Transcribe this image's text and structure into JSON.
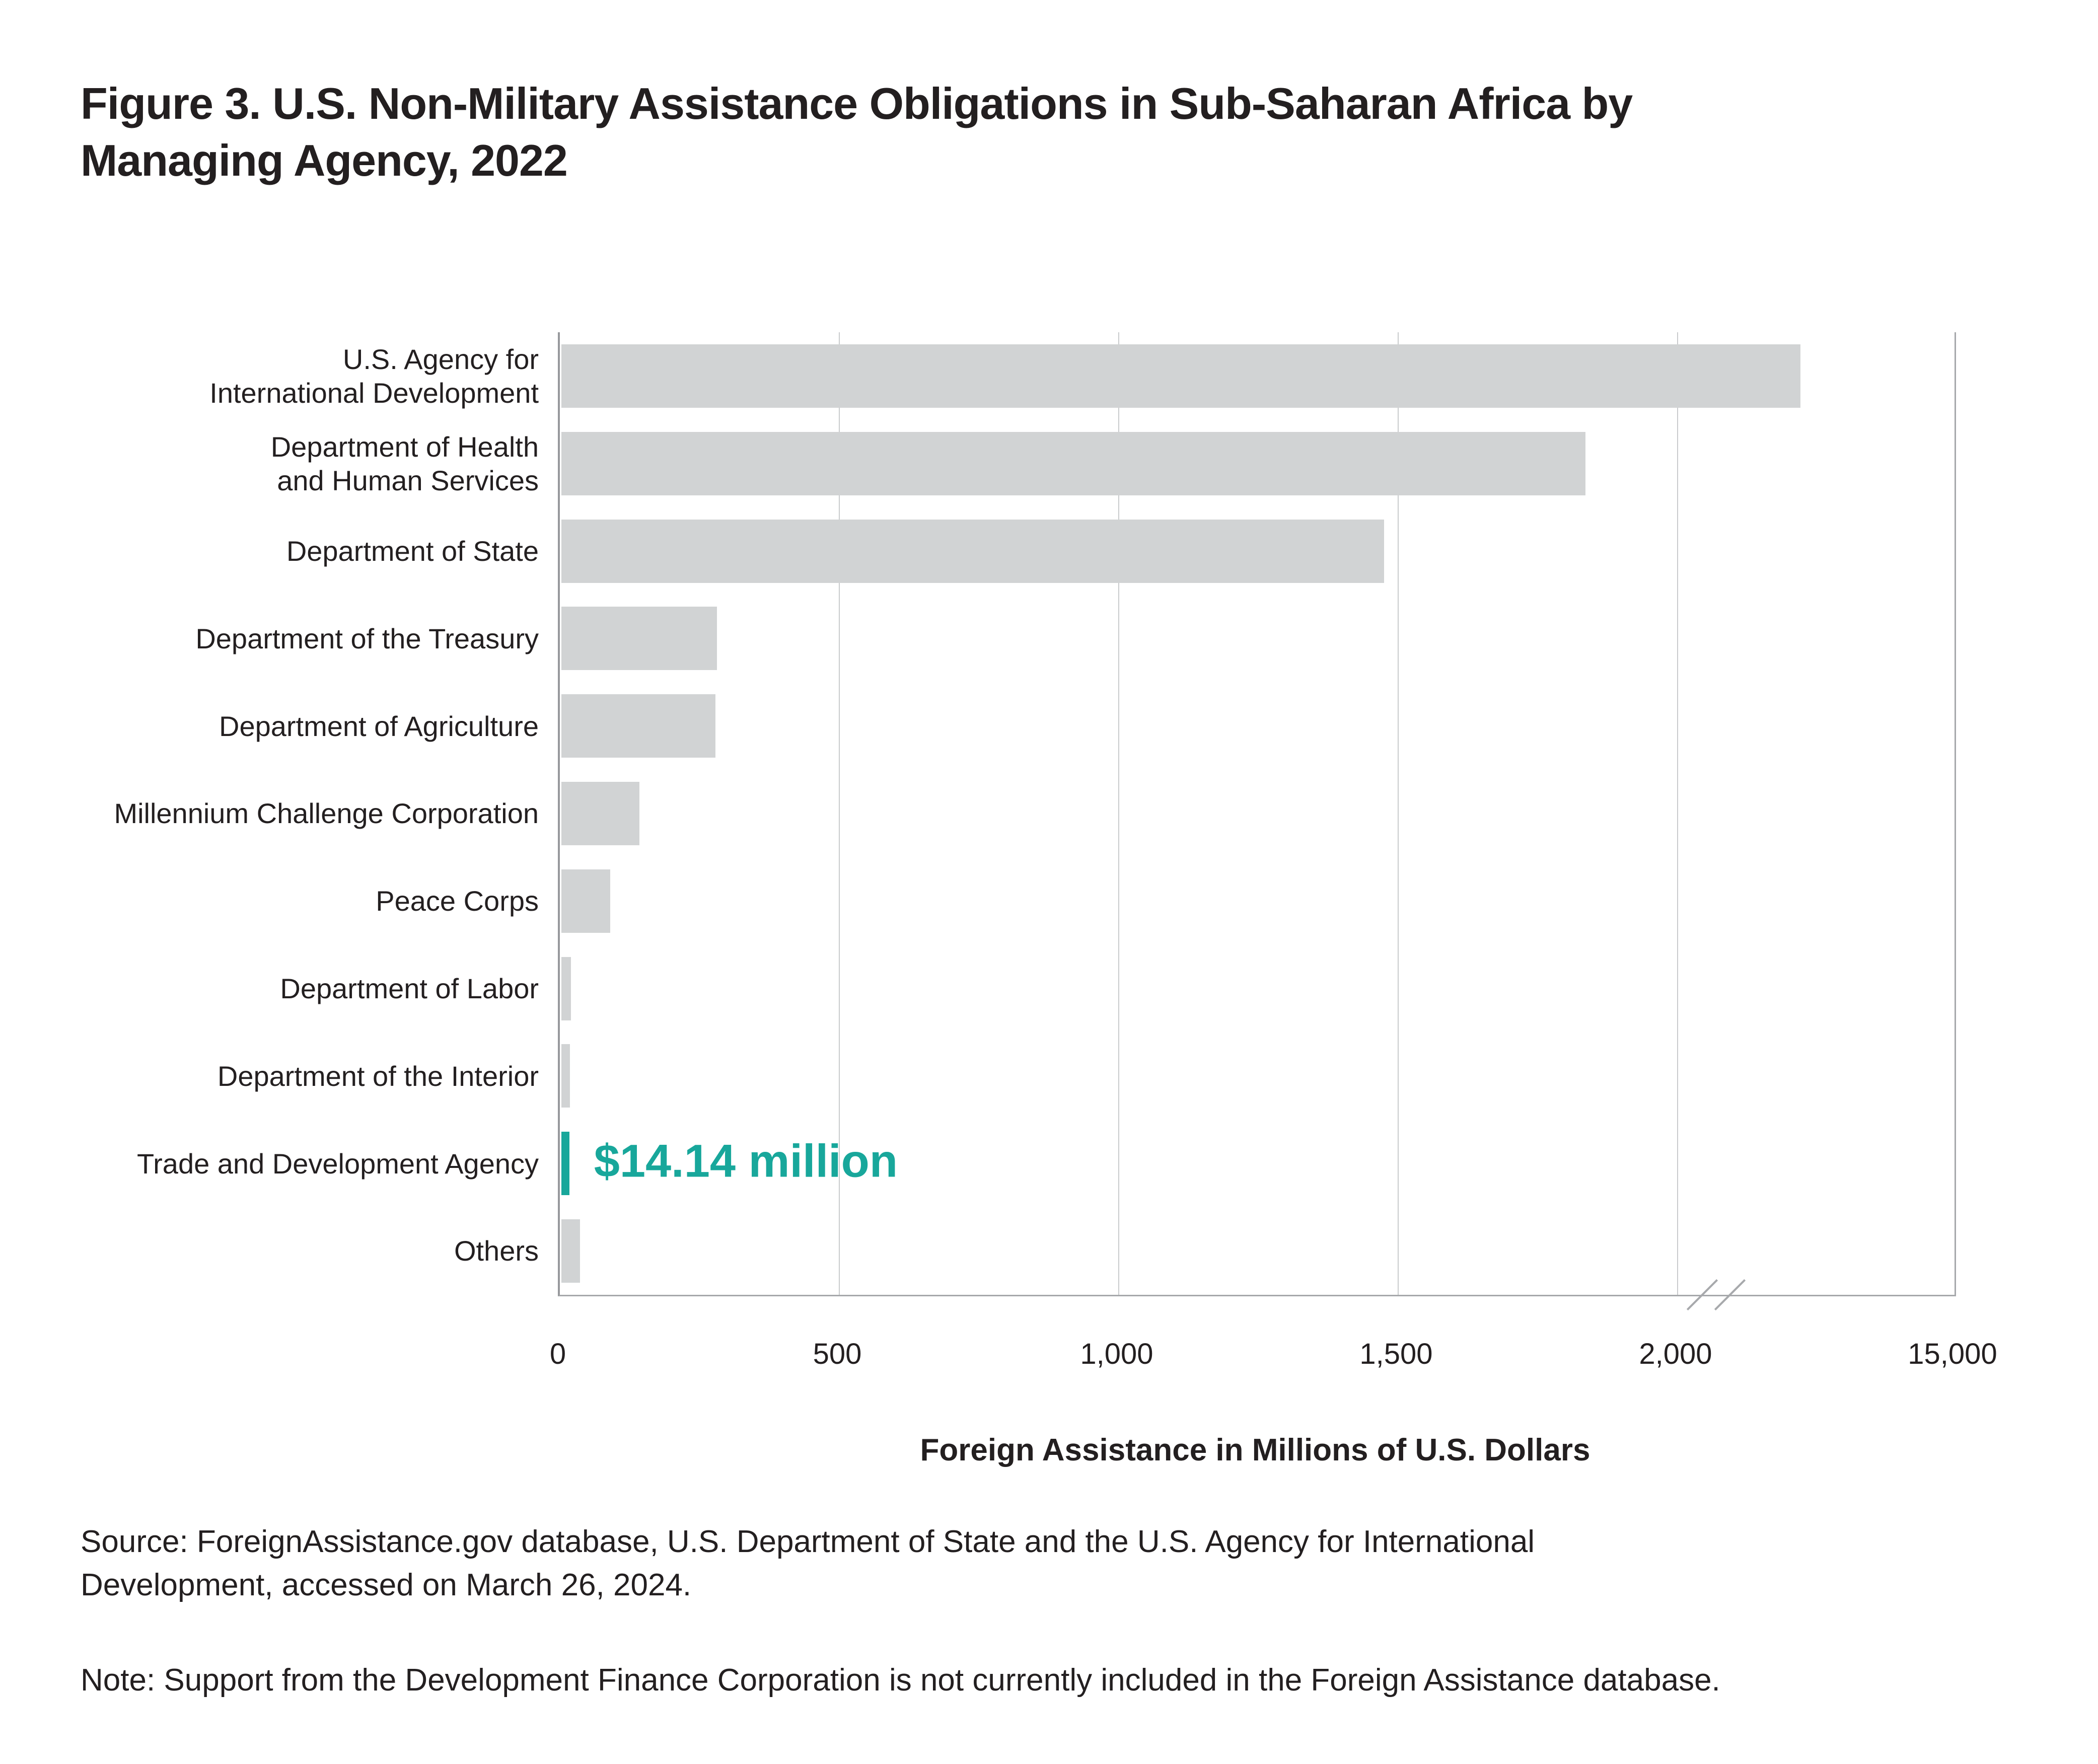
{
  "title": {
    "line1": "Figure 3. U.S. Non-Military Assistance Obligations in Sub-Saharan Africa by",
    "line2": "Managing Agency, 2022"
  },
  "chart_data": {
    "type": "bar",
    "orientation": "horizontal",
    "categories": [
      "U.S. Agency for\nInternational Development",
      "Department of Health\nand Human Services",
      "Department of State",
      "Department of the Treasury",
      "Department of Agriculture",
      "Millennium Challenge Corporation",
      "Peace Corps",
      "Department of Labor",
      "Department of the Interior",
      "Trade and Development Agency",
      "Others"
    ],
    "values": [
      2217,
      1832,
      1472,
      278,
      276,
      140,
      87,
      17,
      15,
      14.14,
      33
    ],
    "highlight_index": 9,
    "annotation": {
      "text": "$14.14 million",
      "category": "Trade and Development Agency",
      "value": 14.14
    },
    "xlabel": "Foreign Assistance in Millions of U.S. Dollars",
    "x_ticks": [
      "0",
      "500",
      "1,000",
      "1,500",
      "2,000",
      "15,000"
    ],
    "x_tick_values": [
      0,
      500,
      1000,
      1500,
      2000,
      15000
    ],
    "axis_break": true,
    "axis_break_between": [
      2000,
      15000
    ],
    "xlim": [
      0,
      15000
    ],
    "grid": "vertical",
    "legend": "none",
    "bar_color": "#D1D3D4",
    "highlight_color": "#18A79B",
    "text_color": "#231F20"
  },
  "source": "Source: ForeignAssistance.gov database, U.S. Department of State and the U.S. Agency for International\nDevelopment, accessed on March 26, 2024.",
  "note": "Note: Support from the Development Finance Corporation is not currently included in the Foreign Assistance database."
}
